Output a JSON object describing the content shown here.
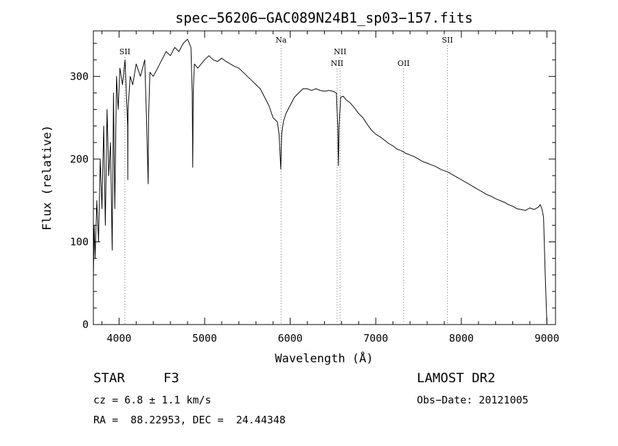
{
  "chart_data": {
    "type": "line",
    "title": "spec−56206−GAC089N24B1_sp03−157.fits",
    "xlabel": "Wavelength (Å)",
    "ylabel": "Flux (relative)",
    "xlim": [
      3700,
      9100
    ],
    "ylim": [
      0,
      355
    ],
    "x_ticks": [
      4000,
      5000,
      6000,
      7000,
      8000,
      9000
    ],
    "y_ticks": [
      0,
      100,
      200,
      300
    ],
    "grid": false,
    "line_color": "#000000",
    "spectral_lines": [
      {
        "label": "SII",
        "x": 4068,
        "row": 1
      },
      {
        "label": "Na",
        "x": 5893,
        "row": 0
      },
      {
        "label": "NII",
        "x": 6583,
        "row": 1
      },
      {
        "label": "NII",
        "x": 6548,
        "row": 2
      },
      {
        "label": "OII",
        "x": 7325,
        "row": 2
      },
      {
        "label": "SII",
        "x": 7837,
        "row": 0
      }
    ],
    "series": [
      {
        "x": [
          3700,
          3710,
          3720,
          3740,
          3760,
          3780,
          3800,
          3820,
          3840,
          3860,
          3880,
          3900,
          3920,
          3935,
          3950,
          3970,
          3990,
          4010,
          4040,
          4070,
          4100,
          4102,
          4104,
          4130,
          4160,
          4200,
          4250,
          4300,
          4320,
          4340,
          4345,
          4360,
          4400,
          4450,
          4500,
          4550,
          4600,
          4650,
          4700,
          4750,
          4800,
          4840,
          4855,
          4861,
          4867,
          4880,
          4920,
          4960,
          5000,
          5050,
          5100,
          5150,
          5200,
          5250,
          5300,
          5350,
          5400,
          5450,
          5500,
          5550,
          5600,
          5650,
          5700,
          5750,
          5800,
          5850,
          5870,
          5890,
          5900,
          5920,
          5950,
          6000,
          6050,
          6100,
          6150,
          6200,
          6250,
          6300,
          6350,
          6400,
          6450,
          6500,
          6540,
          6555,
          6563,
          6571,
          6590,
          6620,
          6650,
          6700,
          6750,
          6800,
          6850,
          6900,
          6950,
          7000,
          7050,
          7100,
          7150,
          7200,
          7250,
          7300,
          7350,
          7400,
          7450,
          7500,
          7550,
          7600,
          7650,
          7700,
          7750,
          7800,
          7850,
          7900,
          7950,
          8000,
          8050,
          8100,
          8150,
          8200,
          8250,
          8300,
          8350,
          8400,
          8450,
          8500,
          8550,
          8600,
          8650,
          8700,
          8750,
          8800,
          8850,
          8900,
          8920,
          8940,
          8960,
          8980,
          9000
        ],
        "y": [
          60,
          120,
          80,
          150,
          100,
          200,
          140,
          240,
          120,
          260,
          180,
          220,
          90,
          280,
          140,
          300,
          260,
          310,
          290,
          320,
          240,
          175,
          260,
          300,
          290,
          315,
          300,
          320,
          250,
          170,
          250,
          305,
          300,
          310,
          320,
          330,
          325,
          335,
          330,
          340,
          345,
          335,
          280,
          190,
          280,
          315,
          310,
          315,
          320,
          325,
          320,
          318,
          322,
          318,
          315,
          312,
          310,
          305,
          300,
          295,
          290,
          285,
          275,
          265,
          250,
          245,
          230,
          188,
          230,
          245,
          255,
          265,
          275,
          280,
          285,
          285,
          283,
          285,
          283,
          282,
          283,
          282,
          280,
          240,
          192,
          240,
          275,
          276,
          272,
          268,
          262,
          255,
          250,
          242,
          235,
          230,
          227,
          223,
          219,
          216,
          212,
          210,
          207,
          205,
          203,
          200,
          197,
          195,
          193,
          191,
          188,
          186,
          184,
          181,
          178,
          175,
          172,
          169,
          166,
          163,
          160,
          157,
          155,
          152,
          150,
          148,
          145,
          143,
          140,
          139,
          138,
          141,
          139,
          142,
          145,
          140,
          130,
          60,
          0
        ]
      }
    ]
  },
  "info": {
    "object_class": "STAR",
    "subclass": "F3",
    "survey": "LAMOST DR2",
    "velocity": "cz = 6.8 ± 1.1 km/s",
    "obs_date": "Obs−Date: 20121005",
    "coords": "RA =  88.22953, DEC =  24.44348"
  }
}
